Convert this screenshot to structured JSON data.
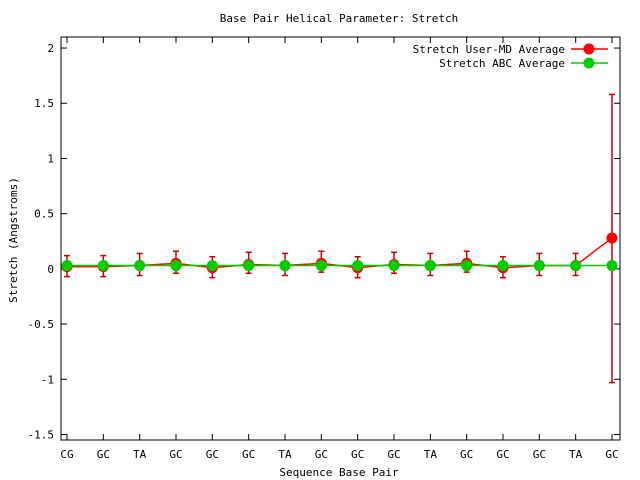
{
  "chart_data": {
    "type": "line",
    "title": "Base Pair Helical Parameter: Stretch",
    "xlabel": "Sequence Base Pair",
    "ylabel": "Stretch (Angstroms)",
    "ylim": [
      -1.55,
      2.1
    ],
    "yticks": [
      -1.5,
      -1,
      -0.5,
      0,
      0.5,
      1,
      1.5,
      2
    ],
    "ytick_labels": [
      "-1.5",
      "-1",
      "-0.5",
      "0",
      "0.5",
      "1",
      "1.5",
      "2"
    ],
    "categories": [
      "CG",
      "GC",
      "TA",
      "GC",
      "GC",
      "GC",
      "TA",
      "GC",
      "GC",
      "GC",
      "TA",
      "GC",
      "GC",
      "GC",
      "TA",
      "GC"
    ],
    "grid": false,
    "legend_position": "top-right",
    "series": [
      {
        "name": "Stretch User-MD Average",
        "color": "#ff0000",
        "error_color": "#cc0000",
        "values": [
          0.02,
          0.02,
          0.03,
          0.05,
          0.01,
          0.04,
          0.03,
          0.05,
          0.01,
          0.04,
          0.03,
          0.05,
          0.01,
          0.03,
          0.03,
          0.28
        ],
        "error_low": [
          -0.07,
          -0.07,
          -0.06,
          -0.04,
          -0.08,
          -0.04,
          -0.06,
          -0.03,
          -0.08,
          -0.04,
          -0.06,
          -0.03,
          -0.08,
          -0.06,
          -0.06,
          -1.03
        ],
        "error_high": [
          0.12,
          0.12,
          0.14,
          0.16,
          0.11,
          0.15,
          0.14,
          0.16,
          0.11,
          0.15,
          0.14,
          0.16,
          0.11,
          0.14,
          0.14,
          1.58
        ]
      },
      {
        "name": "Stretch ABC Average",
        "color": "#00cc00",
        "values": [
          0.03,
          0.03,
          0.03,
          0.03,
          0.03,
          0.03,
          0.03,
          0.03,
          0.03,
          0.03,
          0.03,
          0.03,
          0.03,
          0.03,
          0.03,
          0.03
        ]
      }
    ]
  }
}
